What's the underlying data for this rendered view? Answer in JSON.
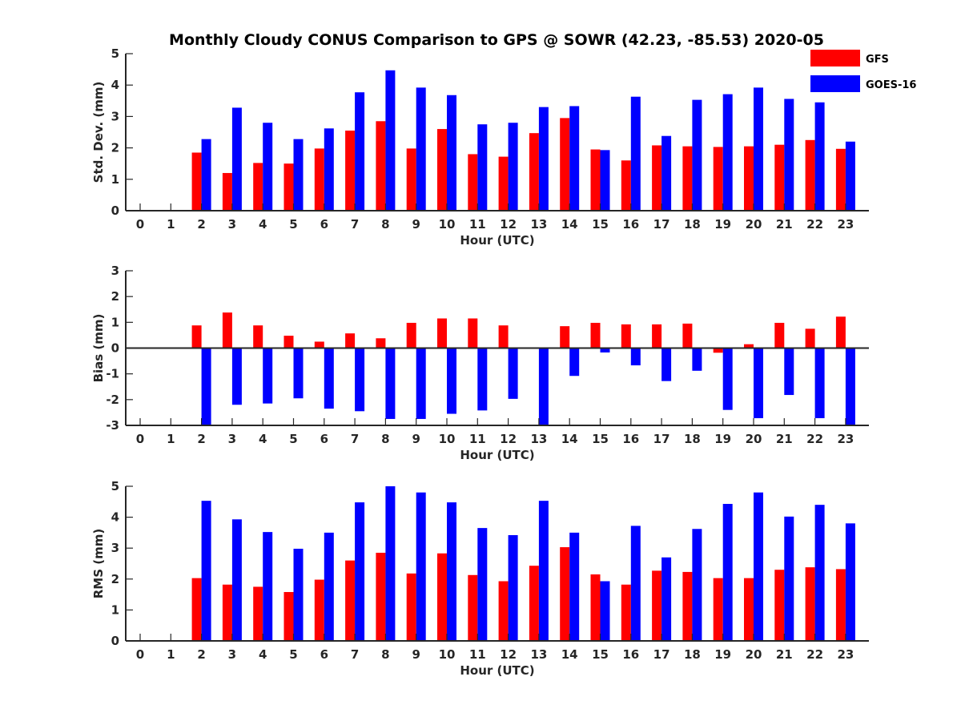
{
  "title": "Monthly Cloudy CONUS Comparison to GPS @ SOWR (42.23, -85.53) 2020-05",
  "colors": {
    "GFS": "#ff0000",
    "GOES-16": "#0000ff",
    "axis": "#262626"
  },
  "legend": {
    "placement": "top-right",
    "entries": [
      "GFS",
      "GOES-16"
    ]
  },
  "chart_data": [
    {
      "type": "bar",
      "xlabel": "Hour (UTC)",
      "ylabel": "Std. Dev. (mm)",
      "ylim": [
        0,
        5
      ],
      "yticks": [
        "0",
        "1",
        "2",
        "3",
        "4",
        "5"
      ],
      "categories": [
        "0",
        "1",
        "2",
        "3",
        "4",
        "5",
        "6",
        "7",
        "8",
        "9",
        "10",
        "11",
        "12",
        "13",
        "14",
        "15",
        "16",
        "17",
        "18",
        "19",
        "20",
        "21",
        "22",
        "23"
      ],
      "series": [
        {
          "name": "GFS",
          "values": [
            null,
            null,
            1.85,
            1.2,
            1.52,
            1.5,
            1.98,
            2.55,
            2.85,
            1.98,
            2.6,
            1.8,
            1.72,
            2.47,
            2.95,
            1.95,
            1.6,
            2.08,
            2.05,
            2.03,
            2.05,
            2.1,
            2.25,
            1.97
          ]
        },
        {
          "name": "GOES-16",
          "values": [
            null,
            null,
            2.28,
            3.28,
            2.8,
            2.28,
            2.62,
            3.77,
            4.47,
            3.92,
            3.68,
            2.75,
            2.8,
            3.3,
            3.33,
            1.93,
            3.63,
            2.38,
            3.53,
            3.71,
            3.92,
            3.56,
            3.45,
            2.2
          ]
        }
      ]
    },
    {
      "type": "bar",
      "xlabel": "Hour (UTC)",
      "ylabel": "Bias (mm)",
      "ylim": [
        -3,
        3
      ],
      "yticks": [
        "-3",
        "-2",
        "-1",
        "0",
        "1",
        "2",
        "3"
      ],
      "zero_line": true,
      "categories": [
        "0",
        "1",
        "2",
        "3",
        "4",
        "5",
        "6",
        "7",
        "8",
        "9",
        "10",
        "11",
        "12",
        "13",
        "14",
        "15",
        "16",
        "17",
        "18",
        "19",
        "20",
        "21",
        "22",
        "23"
      ],
      "series": [
        {
          "name": "GFS",
          "values": [
            null,
            null,
            0.88,
            1.38,
            0.88,
            0.48,
            0.25,
            0.57,
            0.38,
            0.98,
            1.15,
            1.15,
            0.88,
            null,
            0.85,
            0.98,
            0.92,
            0.92,
            0.95,
            -0.18,
            0.15,
            0.98,
            0.75,
            1.22
          ]
        },
        {
          "name": "GOES-16",
          "values": [
            null,
            null,
            -3.1,
            -2.2,
            -2.15,
            -1.95,
            -2.35,
            -2.45,
            -2.75,
            -2.75,
            -2.55,
            -2.42,
            -1.97,
            -3.1,
            -1.08,
            -0.17,
            -0.67,
            -1.28,
            -0.88,
            -2.4,
            -2.72,
            -1.82,
            -2.72,
            -3.1
          ]
        }
      ]
    },
    {
      "type": "bar",
      "xlabel": "Hour (UTC)",
      "ylabel": "RMS (mm)",
      "ylim": [
        0,
        5
      ],
      "yticks": [
        "0",
        "1",
        "2",
        "3",
        "4",
        "5"
      ],
      "categories": [
        "0",
        "1",
        "2",
        "3",
        "4",
        "5",
        "6",
        "7",
        "8",
        "9",
        "10",
        "11",
        "12",
        "13",
        "14",
        "15",
        "16",
        "17",
        "18",
        "19",
        "20",
        "21",
        "22",
        "23"
      ],
      "series": [
        {
          "name": "GFS",
          "values": [
            null,
            null,
            2.03,
            1.82,
            1.75,
            1.58,
            1.98,
            2.6,
            2.85,
            2.18,
            2.83,
            2.13,
            1.93,
            2.43,
            3.03,
            2.15,
            1.82,
            2.27,
            2.23,
            2.03,
            2.03,
            2.3,
            2.38,
            2.32
          ]
        },
        {
          "name": "GOES-16",
          "values": [
            null,
            null,
            4.53,
            3.93,
            3.52,
            2.98,
            3.5,
            4.48,
            5.0,
            4.8,
            4.48,
            3.65,
            3.42,
            4.53,
            3.5,
            1.93,
            3.72,
            2.7,
            3.62,
            4.43,
            4.8,
            4.02,
            4.4,
            3.8
          ]
        }
      ]
    }
  ]
}
